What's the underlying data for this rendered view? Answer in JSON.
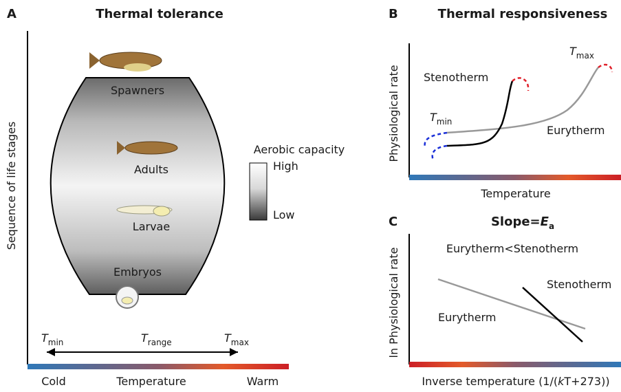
{
  "panel_a": {
    "letter": "A",
    "title": "Thermal tolerance",
    "y_axis_label": "Sequence of life stages",
    "stages": [
      "Spawners",
      "Adults",
      "Larvae",
      "Embryos"
    ],
    "legend": {
      "title": "Aerobic capacity",
      "high": "High",
      "low": "Low"
    },
    "t_min": {
      "symbol": "T",
      "subscript": "min"
    },
    "t_range": {
      "symbol": "T",
      "subscript": "range"
    },
    "t_max": {
      "symbol": "T",
      "subscript": "max"
    },
    "x_axis": {
      "cold": "Cold",
      "label": "Temperature",
      "warm": "Warm"
    }
  },
  "panel_b": {
    "letter": "B",
    "title": "Thermal responsiveness",
    "y_axis_label": "Physiological rate",
    "x_axis_label": "Temperature",
    "stenotherm": "Stenotherm",
    "eurytherm": "Eurytherm",
    "t_min": {
      "symbol": "T",
      "subscript": "min"
    },
    "t_max": {
      "symbol": "T",
      "subscript": "max"
    }
  },
  "panel_c": {
    "letter": "C",
    "title": {
      "prefix": "Slope=",
      "symbol": "E",
      "subscript": "a"
    },
    "y_axis_label": "ln Physiological rate",
    "x_axis_label": {
      "prefix": "Inverse temperature (1/(",
      "italic": "k",
      "suffix": "T+273))"
    },
    "comparison": "Eurytherm<Stenotherm",
    "stenotherm": "Stenotherm",
    "eurytherm": "Eurytherm"
  }
}
